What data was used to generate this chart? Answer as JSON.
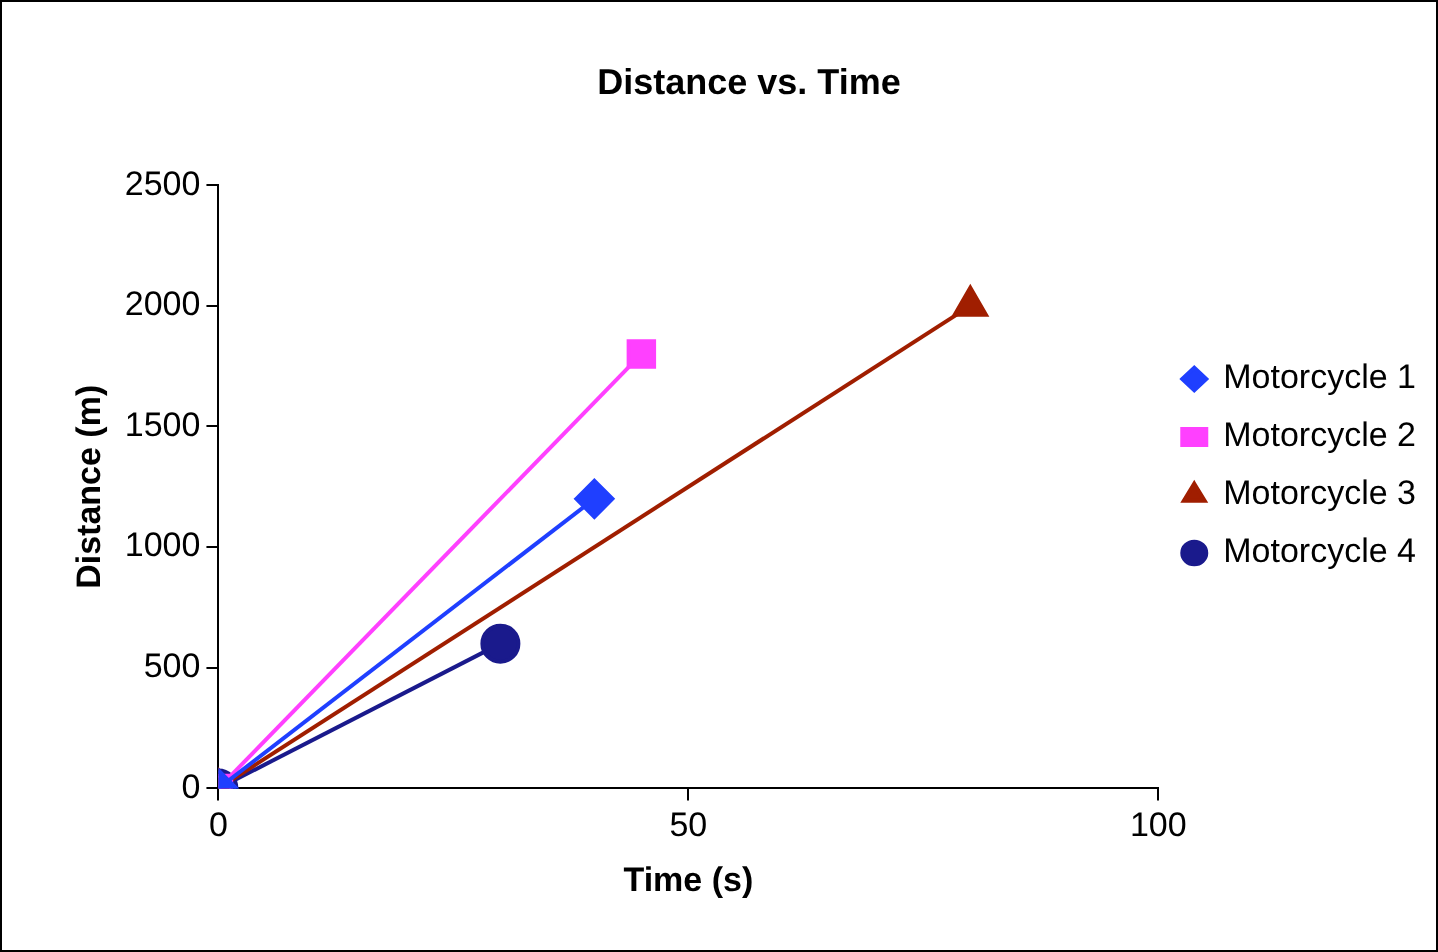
{
  "chart_data": {
    "type": "line",
    "title": "Distance vs. Time",
    "xlabel": "Time (s)",
    "ylabel": "Distance (m)",
    "xlim": [
      0,
      100
    ],
    "xticks": [
      0,
      50,
      100
    ],
    "ylim": [
      0,
      2500
    ],
    "yticks": [
      0,
      500,
      1000,
      1500,
      2000,
      2500
    ],
    "grid": false,
    "legend": "right",
    "line_style": "solid",
    "series": [
      {
        "name": "Motorcycle 1",
        "color": "#1f3fff",
        "marker": "diamond",
        "x": [
          0,
          40
        ],
        "values": [
          0,
          1200
        ]
      },
      {
        "name": "Motorcycle 2",
        "color": "#ff40ff",
        "marker": "square",
        "x": [
          0,
          45
        ],
        "values": [
          0,
          1800
        ]
      },
      {
        "name": "Motorcycle 3",
        "color": "#a01e00",
        "marker": "triangle",
        "x": [
          0,
          80
        ],
        "values": [
          0,
          2000
        ]
      },
      {
        "name": "Motorcycle 4",
        "color": "#1a1a8c",
        "marker": "circle",
        "x": [
          0,
          30
        ],
        "values": [
          0,
          600
        ]
      }
    ]
  }
}
